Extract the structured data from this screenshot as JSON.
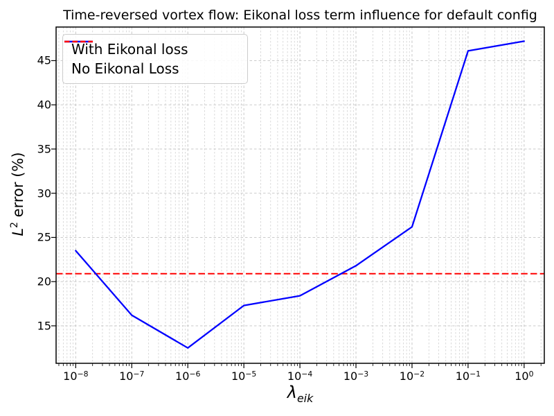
{
  "chart_data": {
    "type": "line",
    "title": "Time-reversed vortex flow: Eikonal loss term influence for default config",
    "xlabel": {
      "base": "λ",
      "sub": "eik"
    },
    "ylabel": {
      "base": "L",
      "sup": "2",
      "rest": " error (%)"
    },
    "x_axis": {
      "scale": "log",
      "tick_exponents": [
        -8,
        -7,
        -6,
        -5,
        -4,
        -3,
        -2,
        -1,
        0
      ],
      "limits_log10": [
        -8.35,
        0.36
      ],
      "tick_mantissa": "10"
    },
    "y_axis": {
      "ticks": [
        15,
        20,
        25,
        30,
        35,
        40,
        45
      ],
      "limits": [
        10.76,
        48.8
      ]
    },
    "grid": {
      "visible": true,
      "which": "both-x-major-y",
      "linestyle": "dashed"
    },
    "legend": {
      "location": "upper left"
    },
    "series": [
      {
        "name": "With Eikonal loss",
        "type": "line",
        "color": "#0000ff",
        "linestyle": "solid",
        "x": [
          1e-08,
          1e-07,
          1e-06,
          1e-05,
          0.0001,
          0.001,
          0.01,
          0.1,
          1.0
        ],
        "y": [
          23.5,
          16.2,
          12.5,
          17.3,
          18.4,
          21.8,
          26.2,
          46.1,
          47.2
        ]
      },
      {
        "name": "No Eikonal Loss",
        "type": "hline",
        "color": "#ff0000",
        "linestyle": "dashed",
        "y": 20.9
      }
    ],
    "colors": {
      "grid_major": "#c3c3c3",
      "grid_minor": "#d0d0d0",
      "spine": "#000000"
    }
  }
}
